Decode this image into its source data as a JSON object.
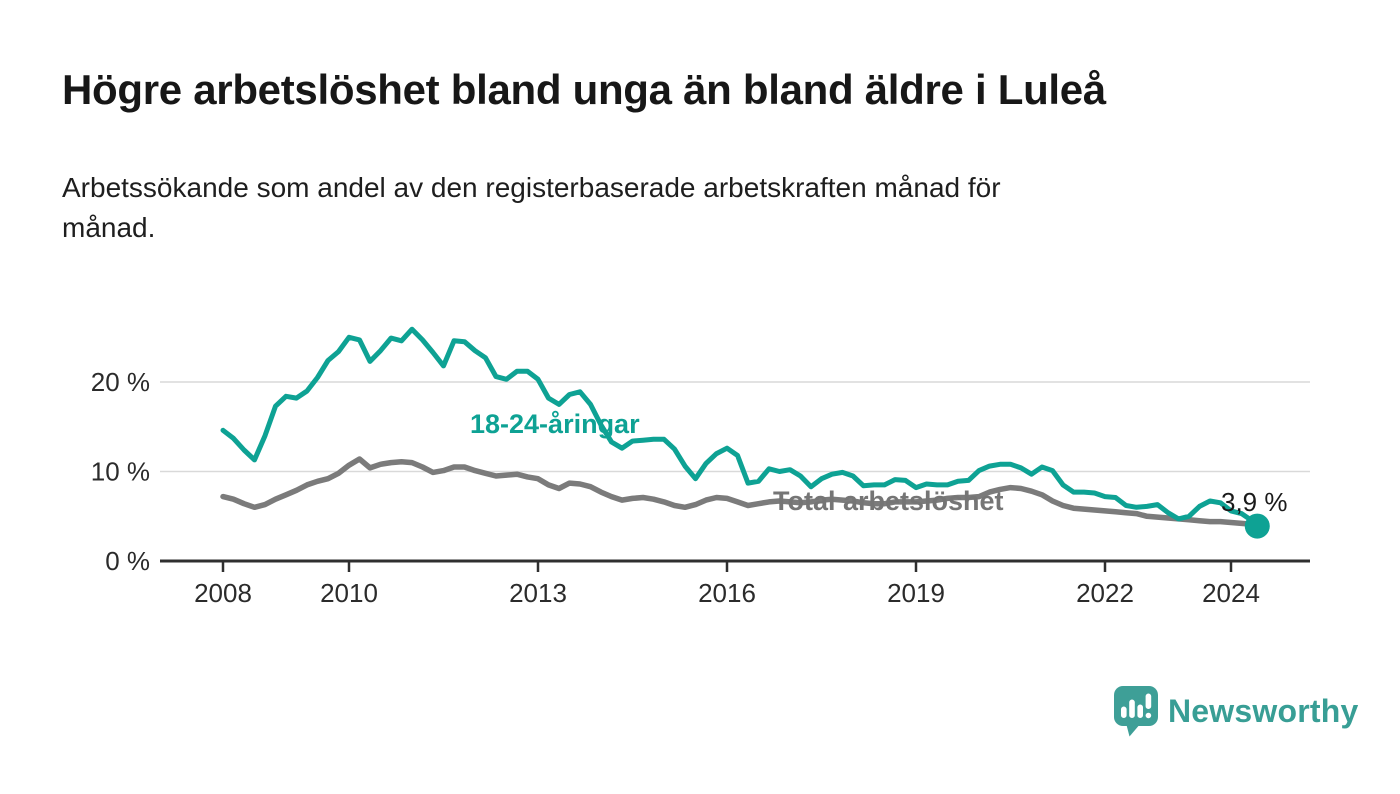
{
  "header": {
    "title": "Högre arbetslöshet bland unga än bland äldre i Luleå",
    "subtitle_line1": "Arbetssökande som andel av den registerbaserade arbetskraften månad för",
    "subtitle_line2": "månad."
  },
  "footer": {
    "brand": "Newsworthy"
  },
  "colors": {
    "accent_teal": "#0ea294",
    "line_gray": "#7b7b7b",
    "axis": "#2f2f2f",
    "grid": "#d9d9d9",
    "tick_text": "#2b2b2b",
    "logo_teal": "#3e9f97",
    "wordmark_teal": "#389e95"
  },
  "chart_data": {
    "type": "line",
    "title": "Högre arbetslöshet bland unga än bland äldre i Luleå",
    "subtitle": "Arbetssökande som andel av den registerbaserade arbetskraften månad för månad.",
    "y_unit": "%",
    "grid": "horizontal",
    "legend_position": "inline-labels",
    "xlim": [
      2007.0,
      2025.25
    ],
    "ylim": [
      0,
      28
    ],
    "y_ticks": [
      {
        "value": 0,
        "label": "0 %"
      },
      {
        "value": 10,
        "label": "10 %"
      },
      {
        "value": 20,
        "label": "20 %"
      }
    ],
    "x_ticks": [
      {
        "value": 2008,
        "label": "2008"
      },
      {
        "value": 2010,
        "label": "2010"
      },
      {
        "value": 2013,
        "label": "2013"
      },
      {
        "value": 2016,
        "label": "2016"
      },
      {
        "value": 2019,
        "label": "2019"
      },
      {
        "value": 2022,
        "label": "2022"
      },
      {
        "value": 2024,
        "label": "2024"
      }
    ],
    "x": [
      2008.0,
      2008.167,
      2008.333,
      2008.5,
      2008.667,
      2008.833,
      2009.0,
      2009.167,
      2009.333,
      2009.5,
      2009.667,
      2009.833,
      2010.0,
      2010.167,
      2010.333,
      2010.5,
      2010.667,
      2010.833,
      2011.0,
      2011.167,
      2011.333,
      2011.5,
      2011.667,
      2011.833,
      2012.0,
      2012.167,
      2012.333,
      2012.5,
      2012.667,
      2012.833,
      2013.0,
      2013.167,
      2013.333,
      2013.5,
      2013.667,
      2013.833,
      2014.0,
      2014.167,
      2014.333,
      2014.5,
      2014.667,
      2014.833,
      2015.0,
      2015.167,
      2015.333,
      2015.5,
      2015.667,
      2015.833,
      2016.0,
      2016.167,
      2016.333,
      2016.5,
      2016.667,
      2016.833,
      2017.0,
      2017.167,
      2017.333,
      2017.5,
      2017.667,
      2017.833,
      2018.0,
      2018.167,
      2018.333,
      2018.5,
      2018.667,
      2018.833,
      2019.0,
      2019.167,
      2019.333,
      2019.5,
      2019.667,
      2019.833,
      2020.0,
      2020.167,
      2020.333,
      2020.5,
      2020.667,
      2020.833,
      2021.0,
      2021.167,
      2021.333,
      2021.5,
      2021.667,
      2021.833,
      2022.0,
      2022.167,
      2022.333,
      2022.5,
      2022.667,
      2022.833,
      2023.0,
      2023.167,
      2023.333,
      2023.5,
      2023.667,
      2023.833,
      2024.0,
      2024.167,
      2024.333,
      2024.417
    ],
    "series": [
      {
        "name": "18-24-åringar",
        "color": "#0ea294",
        "values": [
          14.6,
          13.7,
          12.4,
          11.3,
          14.0,
          17.3,
          18.4,
          18.2,
          19.0,
          20.5,
          22.4,
          23.4,
          25.0,
          24.7,
          22.3,
          23.5,
          24.9,
          24.6,
          25.9,
          24.7,
          23.3,
          21.8,
          24.6,
          24.5,
          23.5,
          22.7,
          20.6,
          20.3,
          21.2,
          21.2,
          20.3,
          18.2,
          17.5,
          18.6,
          18.9,
          17.5,
          15.2,
          13.3,
          12.6,
          13.4,
          13.5,
          13.6,
          13.6,
          12.5,
          10.6,
          9.2,
          10.9,
          12.0,
          12.6,
          11.8,
          8.7,
          8.9,
          10.3,
          10.0,
          10.2,
          9.5,
          8.3,
          9.2,
          9.7,
          9.9,
          9.5,
          8.4,
          8.5,
          8.5,
          9.1,
          9.0,
          8.2,
          8.6,
          8.5,
          8.5,
          8.9,
          9.0,
          10.1,
          10.6,
          10.8,
          10.8,
          10.4,
          9.7,
          10.5,
          10.1,
          8.5,
          7.7,
          7.7,
          7.6,
          7.2,
          7.1,
          6.2,
          6.0,
          6.1,
          6.3,
          5.4,
          4.7,
          5.0,
          6.1,
          6.7,
          6.5,
          5.6,
          5.3,
          4.5,
          3.9
        ]
      },
      {
        "name": "Total arbetslöshet",
        "color": "#7b7b7b",
        "values": [
          7.2,
          6.9,
          6.4,
          6.0,
          6.3,
          6.9,
          7.4,
          7.9,
          8.5,
          8.9,
          9.2,
          9.8,
          10.7,
          11.4,
          10.4,
          10.8,
          11.0,
          11.1,
          11.0,
          10.5,
          9.9,
          10.1,
          10.5,
          10.5,
          10.1,
          9.8,
          9.5,
          9.6,
          9.7,
          9.4,
          9.2,
          8.5,
          8.1,
          8.7,
          8.6,
          8.3,
          7.7,
          7.2,
          6.8,
          7.0,
          7.1,
          6.9,
          6.6,
          6.2,
          6.0,
          6.3,
          6.8,
          7.1,
          7.0,
          6.6,
          6.2,
          6.4,
          6.6,
          6.7,
          6.6,
          6.5,
          6.6,
          6.8,
          6.9,
          6.8,
          6.7,
          6.5,
          6.4,
          6.4,
          6.6,
          6.6,
          6.6,
          6.7,
          6.8,
          7.0,
          7.1,
          7.1,
          7.2,
          7.7,
          8.0,
          8.2,
          8.1,
          7.8,
          7.4,
          6.7,
          6.2,
          5.9,
          5.8,
          5.7,
          5.6,
          5.5,
          5.4,
          5.3,
          5.0,
          4.9,
          4.8,
          4.7,
          4.6,
          4.5,
          4.4,
          4.4,
          4.3,
          4.2,
          4.1,
          4.0
        ]
      }
    ],
    "end_label": "3,9 %",
    "end_point": {
      "x": 2024.417,
      "y": 3.9,
      "series": "18-24-åringar"
    }
  }
}
